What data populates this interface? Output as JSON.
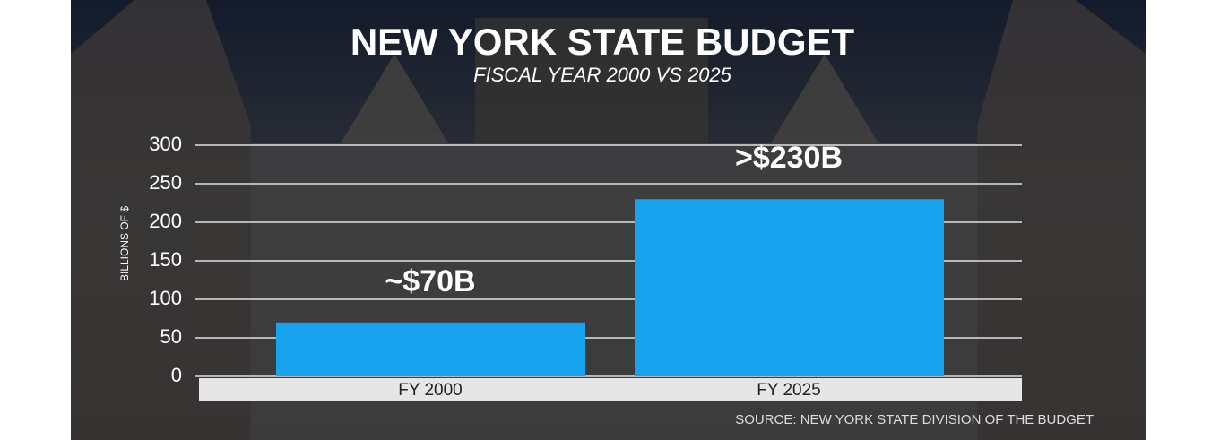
{
  "chart_data": {
    "type": "bar",
    "title": "NEW YORK STATE BUDGET",
    "subtitle": "FISCAL YEAR 2000 VS 2025",
    "y_label": "BILLIONS OF $",
    "categories": [
      "FY 2000",
      "FY 2025"
    ],
    "values": [
      70,
      230
    ],
    "value_labels": [
      "~$70B",
      ">$230B"
    ],
    "color": "#17a3ee",
    "ylim": [
      0,
      300
    ],
    "yticks": [
      0,
      50,
      100,
      150,
      200,
      250,
      300
    ],
    "grid": true,
    "source": "SOURCE: NEW YORK STATE DIVISION OF THE BUDGET"
  }
}
